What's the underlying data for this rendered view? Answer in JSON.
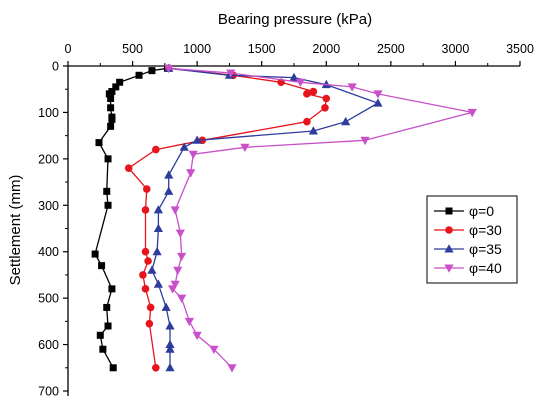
{
  "chart_data": {
    "type": "line",
    "title": "",
    "xlabel": "Bearing pressure (kPa)",
    "ylabel": "Settlement (mm)",
    "x_axis_position": "top",
    "y_axis_inverted": true,
    "xlim": [
      0,
      3500
    ],
    "ylim": [
      0,
      700
    ],
    "xticks": [
      0,
      500,
      1000,
      1500,
      2000,
      2500,
      3000,
      3500
    ],
    "yticks": [
      0,
      100,
      200,
      300,
      400,
      500,
      600,
      700
    ],
    "grid": false,
    "legend_position": "right",
    "series": [
      {
        "name": "φ=0",
        "color": "#000000",
        "marker": "square",
        "points": [
          [
            770,
            5
          ],
          [
            650,
            10
          ],
          [
            550,
            20
          ],
          [
            400,
            35
          ],
          [
            370,
            45
          ],
          [
            340,
            55
          ],
          [
            320,
            60
          ],
          [
            330,
            70
          ],
          [
            330,
            90
          ],
          [
            340,
            110
          ],
          [
            340,
            115
          ],
          [
            330,
            130
          ],
          [
            240,
            165
          ],
          [
            310,
            200
          ],
          [
            300,
            270
          ],
          [
            310,
            300
          ],
          [
            210,
            405
          ],
          [
            260,
            430
          ],
          [
            340,
            480
          ],
          [
            300,
            520
          ],
          [
            310,
            560
          ],
          [
            250,
            580
          ],
          [
            270,
            610
          ],
          [
            350,
            650
          ]
        ]
      },
      {
        "name": "φ=30",
        "color": "#e8141b",
        "marker": "circle",
        "points": [
          [
            780,
            5
          ],
          [
            1280,
            20
          ],
          [
            1650,
            35
          ],
          [
            1900,
            55
          ],
          [
            1850,
            60
          ],
          [
            2000,
            70
          ],
          [
            1990,
            90
          ],
          [
            1850,
            120
          ],
          [
            1040,
            160
          ],
          [
            680,
            180
          ],
          [
            470,
            220
          ],
          [
            610,
            265
          ],
          [
            600,
            310
          ],
          [
            600,
            400
          ],
          [
            620,
            420
          ],
          [
            580,
            450
          ],
          [
            600,
            480
          ],
          [
            640,
            520
          ],
          [
            630,
            555
          ],
          [
            680,
            650
          ]
        ]
      },
      {
        "name": "φ=35",
        "color": "#2e3c9c",
        "marker": "triangle",
        "points": [
          [
            780,
            5
          ],
          [
            1250,
            20
          ],
          [
            1750,
            25
          ],
          [
            2000,
            40
          ],
          [
            2400,
            80
          ],
          [
            2150,
            120
          ],
          [
            1900,
            140
          ],
          [
            1000,
            160
          ],
          [
            900,
            175
          ],
          [
            780,
            235
          ],
          [
            780,
            270
          ],
          [
            700,
            310
          ],
          [
            700,
            350
          ],
          [
            690,
            400
          ],
          [
            650,
            440
          ],
          [
            700,
            470
          ],
          [
            760,
            520
          ],
          [
            790,
            560
          ],
          [
            790,
            600
          ],
          [
            790,
            610
          ],
          [
            790,
            650
          ]
        ]
      },
      {
        "name": "φ=40",
        "color": "#c850c8",
        "marker": "triangle-down",
        "points": [
          [
            780,
            5
          ],
          [
            1260,
            15
          ],
          [
            1800,
            35
          ],
          [
            2200,
            45
          ],
          [
            2400,
            60
          ],
          [
            3130,
            100
          ],
          [
            2300,
            160
          ],
          [
            1370,
            175
          ],
          [
            970,
            190
          ],
          [
            950,
            230
          ],
          [
            830,
            310
          ],
          [
            870,
            360
          ],
          [
            880,
            410
          ],
          [
            850,
            440
          ],
          [
            830,
            470
          ],
          [
            810,
            480
          ],
          [
            880,
            500
          ],
          [
            940,
            550
          ],
          [
            1000,
            580
          ],
          [
            1130,
            610
          ],
          [
            1270,
            650
          ]
        ]
      }
    ]
  }
}
